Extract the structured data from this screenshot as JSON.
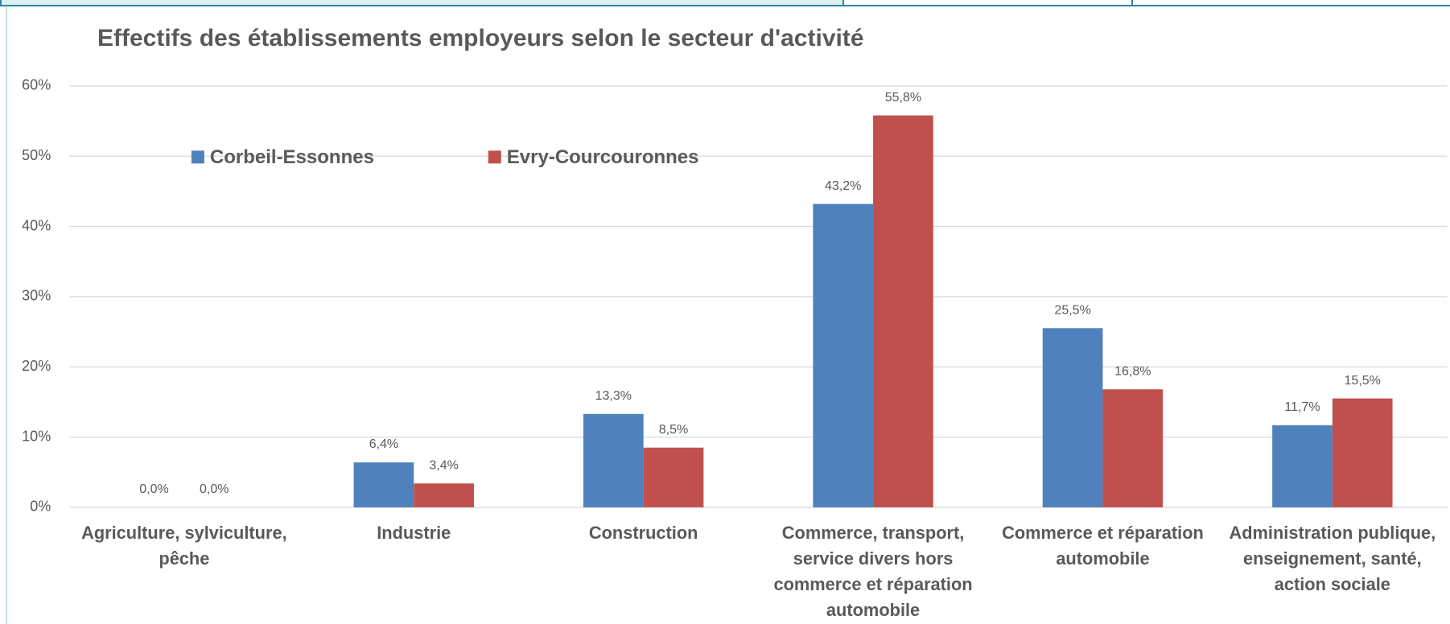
{
  "chart_data": {
    "type": "bar",
    "title": "Effectifs des établissements employeurs selon le secteur d'activité",
    "categories": [
      "Agriculture, sylviculture,\npêche",
      "Industrie",
      "Construction",
      "Commerce, transport,\nservice divers hors\ncommerce et réparation\nautomobile",
      "Commerce et réparation\nautomobile",
      "Administration publique,\nenseignement, santé,\naction sociale"
    ],
    "series": [
      {
        "name": "Corbeil-Essonnes",
        "color": "#4f81bd",
        "values": [
          0,
          6.4,
          13.3,
          43.2,
          25.5,
          11.7
        ],
        "value_labels": [
          "0,0%",
          "6,4%",
          "13,3%",
          "43,2%",
          "25,5%",
          "11,7%"
        ]
      },
      {
        "name": "Evry-Courcouronnes",
        "color": "#c0504d",
        "values": [
          0,
          3.4,
          8.5,
          55.8,
          16.8,
          15.5
        ],
        "value_labels": [
          "0,0%",
          "3,4%",
          "8,5%",
          "55,8%",
          "16,8%",
          "15,5%"
        ]
      }
    ],
    "ylim": [
      0,
      60
    ],
    "yticks": [
      {
        "value": 0,
        "label": "0%"
      },
      {
        "value": 10,
        "label": "10%"
      },
      {
        "value": 20,
        "label": "20%"
      },
      {
        "value": 30,
        "label": "30%"
      },
      {
        "value": 40,
        "label": "40%"
      },
      {
        "value": 50,
        "label": "50%"
      },
      {
        "value": 60,
        "label": "60%"
      }
    ],
    "grid": true
  }
}
